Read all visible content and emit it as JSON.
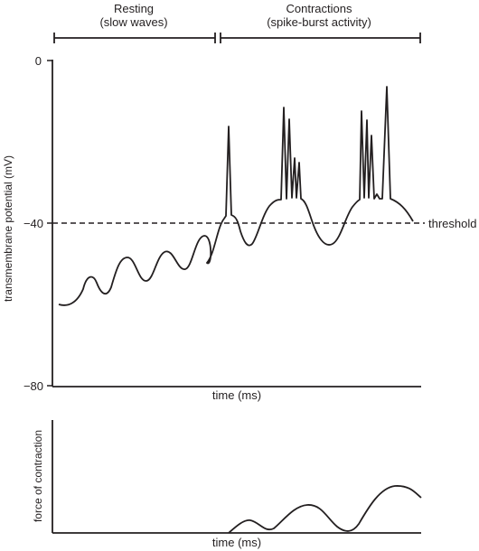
{
  "phases": {
    "resting": {
      "title": "Resting",
      "subtitle": "(slow waves)"
    },
    "contractions": {
      "title": "Contractions",
      "subtitle": "(spike-burst activity)"
    }
  },
  "top_plot": {
    "ylabel": "transmembrane potential (mV)",
    "xlabel": "time (ms)",
    "threshold_label": "threshold",
    "threshold_value": -40,
    "y_ticks": [
      "0",
      "−40",
      "−80"
    ]
  },
  "bottom_plot": {
    "ylabel": "force of contraction",
    "xlabel": "time (ms)"
  },
  "colors": {
    "ink": "#231f20",
    "background": "#ffffff"
  }
}
